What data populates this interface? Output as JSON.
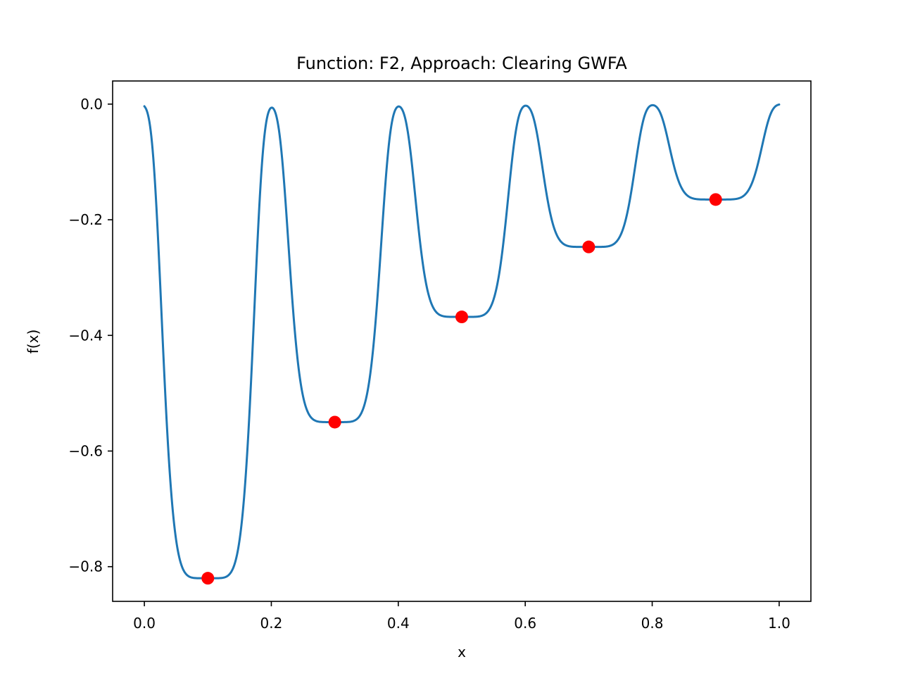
{
  "chart_data": {
    "type": "line",
    "title": "Function: F2, Approach: Clearing GWFA",
    "xlabel": "x",
    "ylabel": "f(x)",
    "xlim": [
      -0.05,
      1.05
    ],
    "ylim": [
      -0.86,
      0.04
    ],
    "x_ticks": [
      0.0,
      0.2,
      0.4,
      0.6,
      0.8,
      1.0
    ],
    "x_tick_labels": [
      "0.0",
      "0.2",
      "0.4",
      "0.6",
      "0.8",
      "1.0"
    ],
    "y_ticks": [
      0.0,
      -0.2,
      -0.4,
      -0.6,
      -0.8
    ],
    "y_tick_labels": [
      "0.0",
      "−0.2",
      "−0.4",
      "−0.6",
      "−0.8"
    ],
    "grid": false,
    "series": [
      {
        "kind": "line",
        "color": "#1f77b4",
        "x_range": [
          0.0,
          1.0
        ],
        "wells": [
          {
            "center": 0.1,
            "depth": 0.82
          },
          {
            "center": 0.3,
            "depth": 0.55
          },
          {
            "center": 0.5,
            "depth": 0.368
          },
          {
            "center": 0.7,
            "depth": 0.247
          },
          {
            "center": 0.9,
            "depth": 0.165
          }
        ]
      },
      {
        "kind": "scatter",
        "color": "#ff0000",
        "points": [
          {
            "x": 0.1,
            "y": -0.82
          },
          {
            "x": 0.3,
            "y": -0.55
          },
          {
            "x": 0.5,
            "y": -0.368
          },
          {
            "x": 0.7,
            "y": -0.247
          },
          {
            "x": 0.9,
            "y": -0.165
          }
        ]
      }
    ]
  }
}
